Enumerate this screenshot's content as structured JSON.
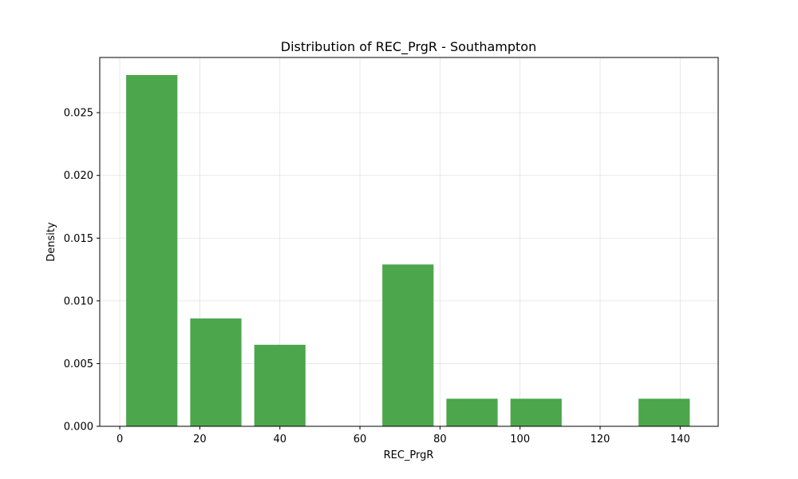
{
  "chart_data": {
    "type": "bar",
    "title": "Distribution of REC_PrgR - Southampton",
    "xlabel": "REC_PrgR",
    "ylabel": "Density",
    "xlim": [
      -5,
      149.5
    ],
    "ylim": [
      0,
      0.0294
    ],
    "xticks": [
      0,
      20,
      40,
      60,
      80,
      100,
      120,
      140
    ],
    "yticks": [
      0.0,
      0.005,
      0.01,
      0.015,
      0.02,
      0.025
    ],
    "ytick_labels": [
      "0.000",
      "0.005",
      "0.010",
      "0.015",
      "0.020",
      "0.025"
    ],
    "grid": true,
    "color": "#4ca64c",
    "bins": [
      {
        "x0": 1.6,
        "x1": 14.4,
        "value": 0.028
      },
      {
        "x0": 17.6,
        "x1": 30.4,
        "value": 0.0086
      },
      {
        "x0": 33.6,
        "x1": 46.4,
        "value": 0.0065
      },
      {
        "x0": 49.6,
        "x1": 62.4,
        "value": 0.0
      },
      {
        "x0": 65.6,
        "x1": 78.4,
        "value": 0.0129
      },
      {
        "x0": 81.6,
        "x1": 94.4,
        "value": 0.0022
      },
      {
        "x0": 97.6,
        "x1": 110.4,
        "value": 0.0022
      },
      {
        "x0": 113.6,
        "x1": 126.4,
        "value": 0.0
      },
      {
        "x0": 129.6,
        "x1": 142.4,
        "value": 0.0022
      }
    ]
  }
}
